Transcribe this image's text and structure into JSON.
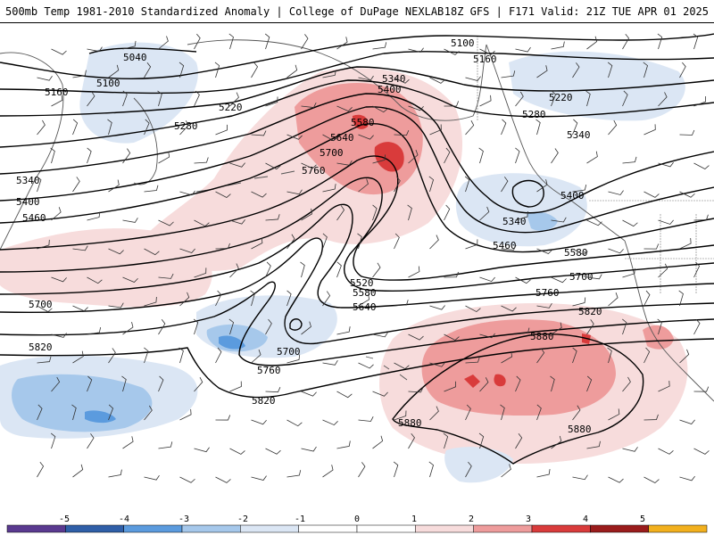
{
  "header": {
    "left_title": "500mb Temp 1981-2010 Standardized Anomaly | College of DuPage NEXLAB",
    "right_title": "18Z GFS | F171 Valid: 21Z TUE APR 01 2025"
  },
  "colors": {
    "contour": "#000000",
    "anom_neg_1": "#dbe6f4",
    "anom_neg_2": "#a6c8eb",
    "anom_neg_3": "#5b9bde",
    "anom_neg_4": "#2f5fa8",
    "anom_neg_5": "#5a3a90",
    "anom_pos_1": "#f7dcdc",
    "anom_pos_2": "#ee9c9c",
    "anom_pos_3": "#d93b3b",
    "anom_pos_4": "#9a1c1c",
    "anom_pos_5": "#f2b01e",
    "coast": "#555555"
  },
  "colorbar": {
    "ticks": [
      "-5",
      "-4",
      "-3",
      "-2",
      "-1",
      "0",
      "1",
      "2",
      "3",
      "4",
      "5"
    ]
  },
  "contour_labels": [
    "5040",
    "5100",
    "5100",
    "5160",
    "5160",
    "5220",
    "5220",
    "5280",
    "5280",
    "5340",
    "5340",
    "5340",
    "5340",
    "5400",
    "5400",
    "5400",
    "5460",
    "5460",
    "5520",
    "5580",
    "5580",
    "5580",
    "5640",
    "5640",
    "5700",
    "5700",
    "5700",
    "5700",
    "5760",
    "5760",
    "5760",
    "5820",
    "5820",
    "5820",
    "5880",
    "5880",
    "5880"
  ]
}
